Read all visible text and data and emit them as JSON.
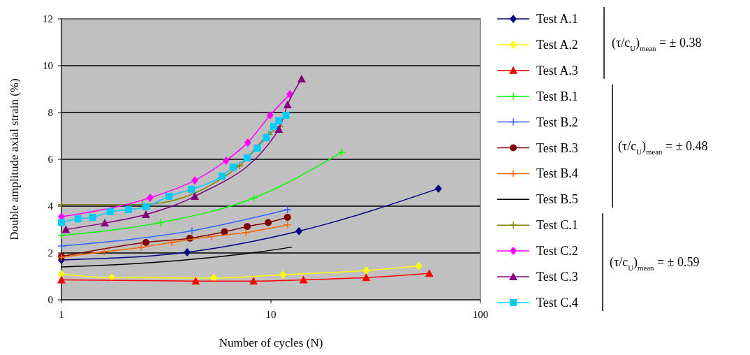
{
  "chart_data": {
    "type": "line",
    "xlabel": "Number of cycles (N)",
    "ylabel": "Double amplitude axial strain (%)",
    "log": "x",
    "xlim": [
      1,
      100
    ],
    "xticks": [
      1,
      10,
      100
    ],
    "ylim": [
      0,
      12
    ],
    "yticks": [
      0,
      2,
      4,
      6,
      8,
      10,
      12
    ],
    "grid": "y",
    "legend": "right",
    "line_style": "solid",
    "annotations": [
      "(τ/c$_{U}$)$_{mean}$ = ± 0.38",
      "(τ/c$_{U}$)$_{mean}$ = ± 0.48",
      "(τ/c$_{U}$)$_{mean}$ = ± 0.59"
    ],
    "series": [
      {
        "name": "Test A.1",
        "color": "#000080",
        "marker": "diamond",
        "x": [
          1,
          3.98,
          13.6,
          63
        ],
        "values": [
          1.7,
          2.03,
          2.93,
          4.75
        ]
      },
      {
        "name": "Test A.2",
        "color": "#ffff00",
        "marker": "diamond",
        "x": [
          1,
          1.74,
          5.33,
          11.4,
          28.5,
          50.8
        ],
        "values": [
          1.1,
          0.95,
          0.93,
          1.07,
          1.25,
          1.45
        ]
      },
      {
        "name": "Test A.3",
        "color": "#ff0000",
        "marker": "triangle",
        "x": [
          1,
          4.37,
          8.25,
          14.3,
          28.5,
          57
        ],
        "values": [
          0.85,
          0.8,
          0.8,
          0.85,
          0.95,
          1.13
        ]
      },
      {
        "name": "Test B.1",
        "color": "#00ff00",
        "marker": "cross",
        "x": [
          1,
          2.97,
          8.3,
          21.8
        ],
        "values": [
          2.75,
          3.3,
          4.35,
          6.3
        ]
      },
      {
        "name": "Test B.2",
        "color": "#3366ff",
        "marker": "cross",
        "x": [
          1,
          4.2,
          12
        ],
        "values": [
          2.3,
          2.95,
          3.85
        ]
      },
      {
        "name": "Test B.3",
        "color": "#800000",
        "marker": "circle",
        "x": [
          1,
          2.53,
          4.1,
          6,
          7.7,
          9.7,
          12
        ],
        "values": [
          1.85,
          2.45,
          2.63,
          2.9,
          3.13,
          3.3,
          3.52
        ]
      },
      {
        "name": "Test B.4",
        "color": "#ff6600",
        "marker": "cross",
        "x": [
          1,
          1.6,
          2.4,
          3.36,
          5.2,
          7.6,
          12
        ],
        "values": [
          1.82,
          2.05,
          2.24,
          2.45,
          2.7,
          2.87,
          3.2
        ]
      },
      {
        "name": "Test B.5",
        "color": "#000000",
        "marker": "none",
        "x": [
          1,
          2.6,
          8.9,
          12.6
        ],
        "values": [
          1.4,
          1.58,
          2.05,
          2.25
        ]
      },
      {
        "name": "Test C.1",
        "color": "#808000",
        "marker": "cross",
        "x": [
          1,
          2.43,
          4.3,
          7.07,
          9.77,
          11
        ],
        "values": [
          4.07,
          4.07,
          null,
          5.73,
          7.07,
          7.4
        ]
      },
      {
        "name": "Test C.2",
        "color": "#ff00ff",
        "marker": "diamond",
        "x": [
          1,
          2.65,
          4.33,
          6.1,
          7.75,
          9.9,
          12.3
        ],
        "values": [
          3.55,
          4.36,
          5.1,
          5.94,
          6.72,
          7.88,
          8.78
        ]
      },
      {
        "name": "Test C.3",
        "color": "#800080",
        "marker": "triangle",
        "x": [
          1.05,
          1.61,
          2.53,
          4.33,
          10.9,
          12,
          14
        ],
        "values": [
          3,
          3.28,
          3.64,
          4.42,
          7.28,
          8.33,
          9.43
        ]
      },
      {
        "name": "Test C.4",
        "color": "#00ccff",
        "marker": "square",
        "x": [
          1,
          1.2,
          1.41,
          1.71,
          2.09,
          2.53,
          3.26,
          4.17,
          5.84,
          6.6,
          7.7,
          8.6,
          9.5,
          10.3,
          10.9,
          11.8
        ],
        "values": [
          3.3,
          3.46,
          3.52,
          3.76,
          3.85,
          3.97,
          4.42,
          4.72,
          5.28,
          5.67,
          6.06,
          6.48,
          6.93,
          7.4,
          7.64,
          7.88
        ]
      }
    ]
  }
}
